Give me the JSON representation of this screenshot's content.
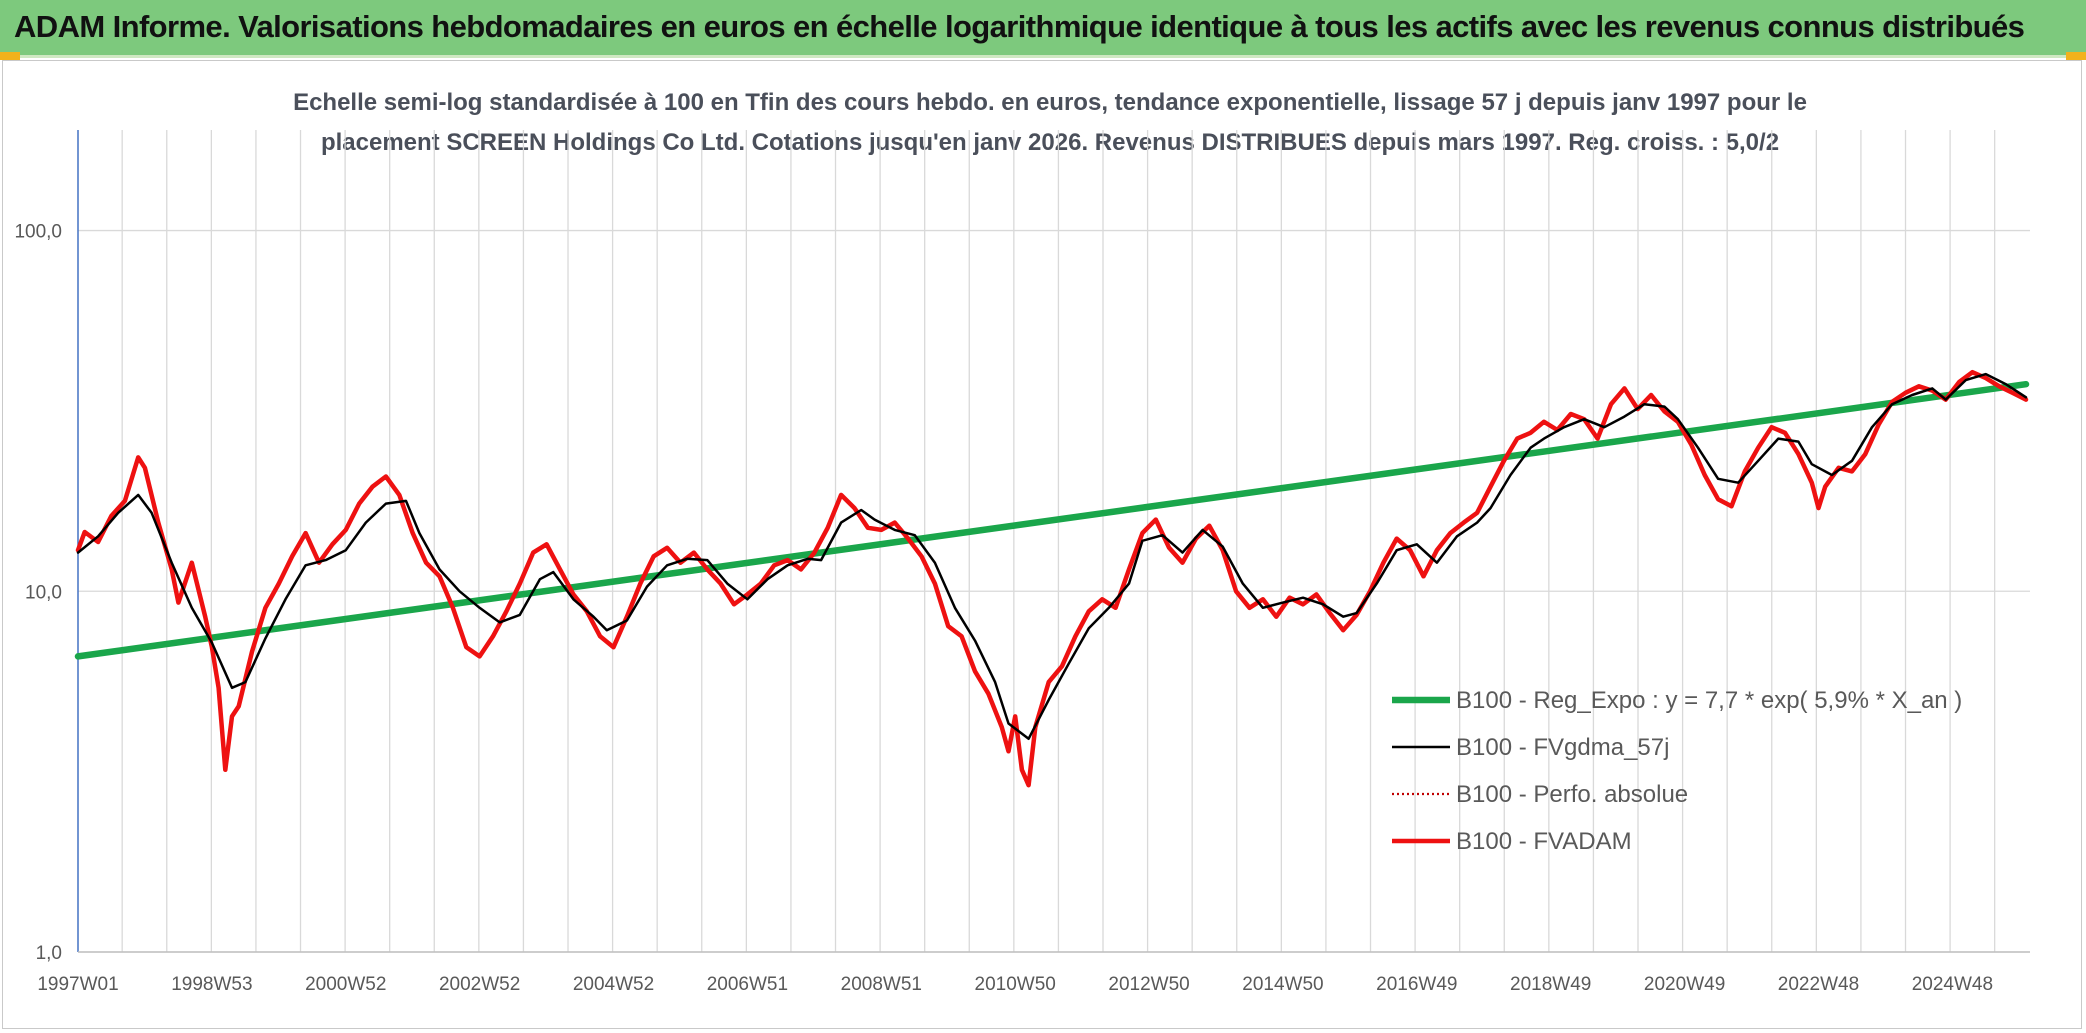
{
  "header": {
    "title": "ADAM Informe. Valorisations hebdomadaires en euros en échelle logarithmique identique à tous les actifs avec les revenus connus distribués"
  },
  "colors": {
    "banner": "#7dc97d",
    "regression": "#1aa64b",
    "smoothed": "#000000",
    "perfo": "#c00000",
    "fvadam": "#ee1111",
    "grid": "#d9d9d9"
  },
  "chart_data": {
    "type": "line",
    "title_line1": "Echelle semi-log standardisée à 100 en Tfin des cours hebdo. en euros, tendance exponentielle, lissage 57 j depuis janv 1997 pour le",
    "title_line2": "placement SCREEN Holdings Co Ltd. Cotations jusqu'en janv 2026. Revenus DISTRIBUES depuis mars 1997. Reg. croiss. : 5,0/2",
    "y_scale": "log",
    "ylim": [
      1,
      190
    ],
    "xlim": [
      1997.0,
      2026.1
    ],
    "y_ticks": [
      {
        "value": 1,
        "label": "1,0"
      },
      {
        "value": 10,
        "label": "10,0"
      },
      {
        "value": 100,
        "label": "100,0"
      }
    ],
    "x_ticks": [
      {
        "x": 1997.0,
        "label": "1997W01"
      },
      {
        "x": 1999.0,
        "label": "1998W53"
      },
      {
        "x": 2001.0,
        "label": "2000W52"
      },
      {
        "x": 2003.0,
        "label": "2002W52"
      },
      {
        "x": 2005.0,
        "label": "2004W52"
      },
      {
        "x": 2007.0,
        "label": "2006W51"
      },
      {
        "x": 2009.0,
        "label": "2008W51"
      },
      {
        "x": 2011.0,
        "label": "2010W50"
      },
      {
        "x": 2013.0,
        "label": "2012W50"
      },
      {
        "x": 2015.0,
        "label": "2014W50"
      },
      {
        "x": 2017.0,
        "label": "2016W49"
      },
      {
        "x": 2019.0,
        "label": "2018W49"
      },
      {
        "x": 2021.0,
        "label": "2020W49"
      },
      {
        "x": 2023.0,
        "label": "2022W48"
      },
      {
        "x": 2025.0,
        "label": "2024W48"
      }
    ],
    "grid": true,
    "legend_position": "right",
    "series": [
      {
        "name": "B100 - Reg_Expo : y = 7,7 * exp( 5,9% *  X_an )",
        "style": "thick-solid",
        "points": [
          [
            1997.0,
            6.6
          ],
          [
            2026.1,
            37.5
          ]
        ]
      },
      {
        "name": "B100 - FVgdma_57j",
        "style": "thin-solid",
        "points": [
          [
            1997.0,
            12.8
          ],
          [
            1997.3,
            14.2
          ],
          [
            1997.6,
            16.5
          ],
          [
            1997.9,
            18.5
          ],
          [
            1998.1,
            16.5
          ],
          [
            1998.4,
            12.0
          ],
          [
            1998.7,
            9.0
          ],
          [
            1999.0,
            7.2
          ],
          [
            1999.3,
            5.4
          ],
          [
            1999.5,
            5.6
          ],
          [
            1999.8,
            7.4
          ],
          [
            2000.1,
            9.5
          ],
          [
            2000.4,
            11.8
          ],
          [
            2000.7,
            12.2
          ],
          [
            2001.0,
            13.0
          ],
          [
            2001.3,
            15.5
          ],
          [
            2001.6,
            17.5
          ],
          [
            2001.9,
            17.8
          ],
          [
            2002.1,
            14.5
          ],
          [
            2002.4,
            11.5
          ],
          [
            2002.7,
            10.0
          ],
          [
            2003.0,
            9.0
          ],
          [
            2003.3,
            8.2
          ],
          [
            2003.6,
            8.6
          ],
          [
            2003.9,
            10.8
          ],
          [
            2004.1,
            11.3
          ],
          [
            2004.4,
            9.5
          ],
          [
            2004.7,
            8.5
          ],
          [
            2004.9,
            7.8
          ],
          [
            2005.2,
            8.3
          ],
          [
            2005.5,
            10.3
          ],
          [
            2005.8,
            11.8
          ],
          [
            2006.1,
            12.3
          ],
          [
            2006.4,
            12.2
          ],
          [
            2006.7,
            10.5
          ],
          [
            2007.0,
            9.5
          ],
          [
            2007.3,
            10.8
          ],
          [
            2007.6,
            11.8
          ],
          [
            2007.9,
            12.3
          ],
          [
            2008.1,
            12.2
          ],
          [
            2008.4,
            15.5
          ],
          [
            2008.7,
            16.8
          ],
          [
            2008.9,
            15.8
          ],
          [
            2009.2,
            14.8
          ],
          [
            2009.5,
            14.3
          ],
          [
            2009.8,
            12.0
          ],
          [
            2010.1,
            9.0
          ],
          [
            2010.4,
            7.3
          ],
          [
            2010.7,
            5.6
          ],
          [
            2010.9,
            4.3
          ],
          [
            2011.2,
            3.9
          ],
          [
            2011.5,
            5.0
          ],
          [
            2011.8,
            6.3
          ],
          [
            2012.1,
            7.9
          ],
          [
            2012.4,
            9.0
          ],
          [
            2012.7,
            10.5
          ],
          [
            2012.9,
            13.8
          ],
          [
            2013.2,
            14.3
          ],
          [
            2013.5,
            12.8
          ],
          [
            2013.8,
            14.8
          ],
          [
            2014.1,
            13.3
          ],
          [
            2014.4,
            10.5
          ],
          [
            2014.7,
            9.0
          ],
          [
            2015.0,
            9.3
          ],
          [
            2015.3,
            9.6
          ],
          [
            2015.6,
            9.2
          ],
          [
            2015.9,
            8.5
          ],
          [
            2016.1,
            8.7
          ],
          [
            2016.4,
            10.5
          ],
          [
            2016.7,
            13.0
          ],
          [
            2017.0,
            13.5
          ],
          [
            2017.3,
            12.0
          ],
          [
            2017.6,
            14.2
          ],
          [
            2017.9,
            15.5
          ],
          [
            2018.1,
            17.0
          ],
          [
            2018.4,
            21.0
          ],
          [
            2018.7,
            25.0
          ],
          [
            2018.9,
            26.5
          ],
          [
            2019.2,
            28.5
          ],
          [
            2019.5,
            30.0
          ],
          [
            2019.8,
            28.5
          ],
          [
            2020.1,
            30.5
          ],
          [
            2020.4,
            33.0
          ],
          [
            2020.7,
            32.5
          ],
          [
            2020.9,
            30.0
          ],
          [
            2021.2,
            25.0
          ],
          [
            2021.5,
            20.5
          ],
          [
            2021.8,
            20.0
          ],
          [
            2022.1,
            23.0
          ],
          [
            2022.4,
            26.5
          ],
          [
            2022.7,
            26.0
          ],
          [
            2022.9,
            22.5
          ],
          [
            2023.2,
            21.0
          ],
          [
            2023.5,
            23.0
          ],
          [
            2023.8,
            28.5
          ],
          [
            2024.1,
            33.0
          ],
          [
            2024.4,
            35.0
          ],
          [
            2024.7,
            36.5
          ],
          [
            2024.9,
            34.0
          ],
          [
            2025.2,
            38.5
          ],
          [
            2025.5,
            40.0
          ],
          [
            2025.8,
            37.5
          ],
          [
            2026.1,
            34.5
          ]
        ]
      },
      {
        "name": "B100 - Perfo. absolue",
        "style": "dotted",
        "points": []
      },
      {
        "name": "B100 - FVADAM",
        "style": "thick-red",
        "points": [
          [
            1997.0,
            13.0
          ],
          [
            1997.1,
            14.6
          ],
          [
            1997.3,
            13.7
          ],
          [
            1997.5,
            16.2
          ],
          [
            1997.7,
            17.8
          ],
          [
            1997.9,
            23.5
          ],
          [
            1998.0,
            22.0
          ],
          [
            1998.2,
            15.5
          ],
          [
            1998.4,
            11.5
          ],
          [
            1998.5,
            9.3
          ],
          [
            1998.7,
            12.0
          ],
          [
            1998.9,
            8.5
          ],
          [
            1999.0,
            7.0
          ],
          [
            1999.1,
            5.4
          ],
          [
            1999.2,
            3.2
          ],
          [
            1999.3,
            4.5
          ],
          [
            1999.4,
            4.8
          ],
          [
            1999.6,
            6.8
          ],
          [
            1999.8,
            9.0
          ],
          [
            2000.0,
            10.5
          ],
          [
            2000.2,
            12.5
          ],
          [
            2000.4,
            14.5
          ],
          [
            2000.6,
            12.0
          ],
          [
            2000.8,
            13.5
          ],
          [
            2001.0,
            14.8
          ],
          [
            2001.2,
            17.5
          ],
          [
            2001.4,
            19.5
          ],
          [
            2001.6,
            20.8
          ],
          [
            2001.8,
            18.5
          ],
          [
            2002.0,
            14.5
          ],
          [
            2002.2,
            12.0
          ],
          [
            2002.4,
            11.0
          ],
          [
            2002.6,
            9.0
          ],
          [
            2002.8,
            7.0
          ],
          [
            2003.0,
            6.6
          ],
          [
            2003.2,
            7.5
          ],
          [
            2003.4,
            8.8
          ],
          [
            2003.6,
            10.5
          ],
          [
            2003.8,
            12.8
          ],
          [
            2004.0,
            13.5
          ],
          [
            2004.2,
            11.5
          ],
          [
            2004.4,
            9.8
          ],
          [
            2004.6,
            8.8
          ],
          [
            2004.8,
            7.5
          ],
          [
            2005.0,
            7.0
          ],
          [
            2005.2,
            8.5
          ],
          [
            2005.4,
            10.5
          ],
          [
            2005.6,
            12.5
          ],
          [
            2005.8,
            13.2
          ],
          [
            2006.0,
            12.0
          ],
          [
            2006.2,
            12.8
          ],
          [
            2006.4,
            11.5
          ],
          [
            2006.6,
            10.5
          ],
          [
            2006.8,
            9.2
          ],
          [
            2007.0,
            9.8
          ],
          [
            2007.2,
            10.5
          ],
          [
            2007.4,
            11.8
          ],
          [
            2007.6,
            12.2
          ],
          [
            2007.8,
            11.5
          ],
          [
            2008.0,
            12.8
          ],
          [
            2008.2,
            15.0
          ],
          [
            2008.4,
            18.5
          ],
          [
            2008.6,
            17.0
          ],
          [
            2008.8,
            15.0
          ],
          [
            2009.0,
            14.8
          ],
          [
            2009.2,
            15.5
          ],
          [
            2009.4,
            14.0
          ],
          [
            2009.6,
            12.5
          ],
          [
            2009.8,
            10.5
          ],
          [
            2010.0,
            8.0
          ],
          [
            2010.2,
            7.5
          ],
          [
            2010.4,
            6.0
          ],
          [
            2010.6,
            5.2
          ],
          [
            2010.8,
            4.2
          ],
          [
            2010.9,
            3.6
          ],
          [
            2011.0,
            4.5
          ],
          [
            2011.1,
            3.2
          ],
          [
            2011.2,
            2.9
          ],
          [
            2011.3,
            4.2
          ],
          [
            2011.5,
            5.6
          ],
          [
            2011.7,
            6.2
          ],
          [
            2011.9,
            7.5
          ],
          [
            2012.1,
            8.8
          ],
          [
            2012.3,
            9.5
          ],
          [
            2012.5,
            9.0
          ],
          [
            2012.7,
            11.5
          ],
          [
            2012.9,
            14.5
          ],
          [
            2013.1,
            15.8
          ],
          [
            2013.3,
            13.2
          ],
          [
            2013.5,
            12.0
          ],
          [
            2013.7,
            14.0
          ],
          [
            2013.9,
            15.2
          ],
          [
            2014.1,
            13.0
          ],
          [
            2014.3,
            10.0
          ],
          [
            2014.5,
            9.0
          ],
          [
            2014.7,
            9.5
          ],
          [
            2014.9,
            8.5
          ],
          [
            2015.1,
            9.6
          ],
          [
            2015.3,
            9.2
          ],
          [
            2015.5,
            9.8
          ],
          [
            2015.7,
            8.7
          ],
          [
            2015.9,
            7.8
          ],
          [
            2016.1,
            8.6
          ],
          [
            2016.3,
            10.0
          ],
          [
            2016.5,
            12.0
          ],
          [
            2016.7,
            14.0
          ],
          [
            2016.9,
            13.0
          ],
          [
            2017.1,
            11.0
          ],
          [
            2017.3,
            13.0
          ],
          [
            2017.5,
            14.5
          ],
          [
            2017.7,
            15.5
          ],
          [
            2017.9,
            16.5
          ],
          [
            2018.1,
            19.5
          ],
          [
            2018.3,
            23.0
          ],
          [
            2018.5,
            26.5
          ],
          [
            2018.7,
            27.5
          ],
          [
            2018.9,
            29.5
          ],
          [
            2019.1,
            28.0
          ],
          [
            2019.3,
            31.0
          ],
          [
            2019.5,
            30.0
          ],
          [
            2019.7,
            26.5
          ],
          [
            2019.9,
            33.0
          ],
          [
            2020.1,
            36.5
          ],
          [
            2020.3,
            32.0
          ],
          [
            2020.5,
            35.0
          ],
          [
            2020.7,
            31.5
          ],
          [
            2020.9,
            29.5
          ],
          [
            2021.1,
            25.5
          ],
          [
            2021.3,
            21.0
          ],
          [
            2021.5,
            18.0
          ],
          [
            2021.7,
            17.2
          ],
          [
            2021.9,
            21.5
          ],
          [
            2022.1,
            25.0
          ],
          [
            2022.3,
            28.5
          ],
          [
            2022.5,
            27.5
          ],
          [
            2022.7,
            24.0
          ],
          [
            2022.9,
            20.0
          ],
          [
            2023.0,
            17.0
          ],
          [
            2023.1,
            19.5
          ],
          [
            2023.3,
            22.0
          ],
          [
            2023.5,
            21.5
          ],
          [
            2023.7,
            24.0
          ],
          [
            2023.9,
            29.0
          ],
          [
            2024.1,
            33.5
          ],
          [
            2024.3,
            35.5
          ],
          [
            2024.5,
            37.0
          ],
          [
            2024.7,
            36.0
          ],
          [
            2024.9,
            34.0
          ],
          [
            2025.1,
            38.0
          ],
          [
            2025.3,
            40.5
          ],
          [
            2025.5,
            39.0
          ],
          [
            2025.7,
            37.0
          ],
          [
            2025.9,
            35.5
          ],
          [
            2026.1,
            34.0
          ]
        ]
      }
    ]
  }
}
